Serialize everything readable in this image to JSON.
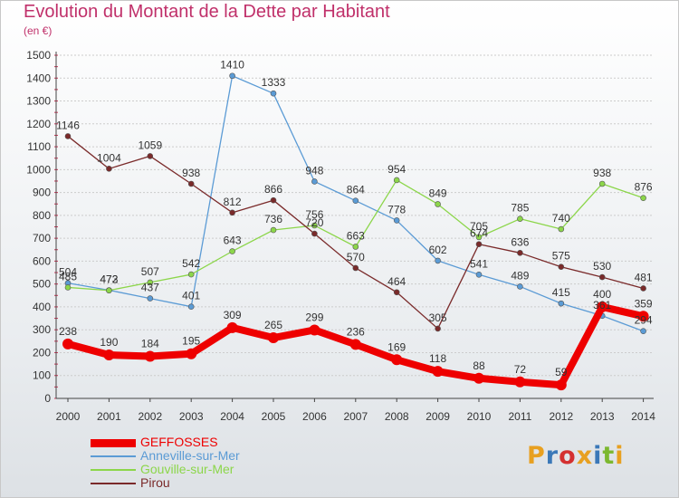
{
  "title": "Evolution du Montant de la Dette par Habitant",
  "unit": "(en €)",
  "logo": "Proxiti",
  "colors": {
    "title": "#c0306a",
    "grid": "#cccccc",
    "logo_letters": [
      "#e8a020",
      "#3b78b8",
      "#d43030",
      "#e8a020",
      "#3b78b8",
      "#7cb82f",
      "#e8a020"
    ]
  },
  "chart_data": {
    "type": "line",
    "title": "Evolution du Montant de la Dette par Habitant",
    "ylabel": "(en €)",
    "xlabel": "",
    "x": [
      "2000",
      "2001",
      "2002",
      "2003",
      "2004",
      "2005",
      "2006",
      "2007",
      "2008",
      "2009",
      "2010",
      "2011",
      "2012",
      "2013",
      "2014"
    ],
    "ylim": [
      0,
      1500
    ],
    "yticks": [
      0,
      100,
      200,
      300,
      400,
      500,
      600,
      700,
      800,
      900,
      1000,
      1100,
      1200,
      1300,
      1400,
      1500
    ],
    "grid": "horizontal",
    "legend_position": "bottom-left",
    "series": [
      {
        "name": "GEFFOSSES",
        "color": "#ee0000",
        "width": 8,
        "marker": 6,
        "values": [
          238,
          190,
          184,
          195,
          309,
          265,
          299,
          236,
          169,
          118,
          88,
          72,
          59,
          400,
          359
        ]
      },
      {
        "name": "Anneville-sur-Mer",
        "color": "#5b9bd5",
        "width": 1.3,
        "marker": 3,
        "values": [
          504,
          473,
          437,
          401,
          1410,
          1333,
          948,
          864,
          778,
          602,
          541,
          489,
          415,
          361,
          294
        ],
        "labels": [
          "504",
          "473",
          "437",
          "401",
          "1410",
          "1333",
          "948",
          "864",
          "778",
          "602",
          "541",
          "489",
          "415",
          "361",
          "294"
        ]
      },
      {
        "name": "Gouville-sur-Mer",
        "color": "#8cd64a",
        "width": 1.3,
        "marker": 3,
        "values": [
          485,
          472,
          507,
          542,
          643,
          736,
          756,
          663,
          954,
          849,
          705,
          785,
          740,
          938,
          876
        ]
      },
      {
        "name": "Pirou",
        "color": "#7a2a2a",
        "width": 1.3,
        "marker": 3,
        "values": [
          1146,
          1004,
          1059,
          938,
          812,
          866,
          720,
          570,
          464,
          305,
          674,
          636,
          575,
          530,
          481
        ]
      }
    ]
  }
}
